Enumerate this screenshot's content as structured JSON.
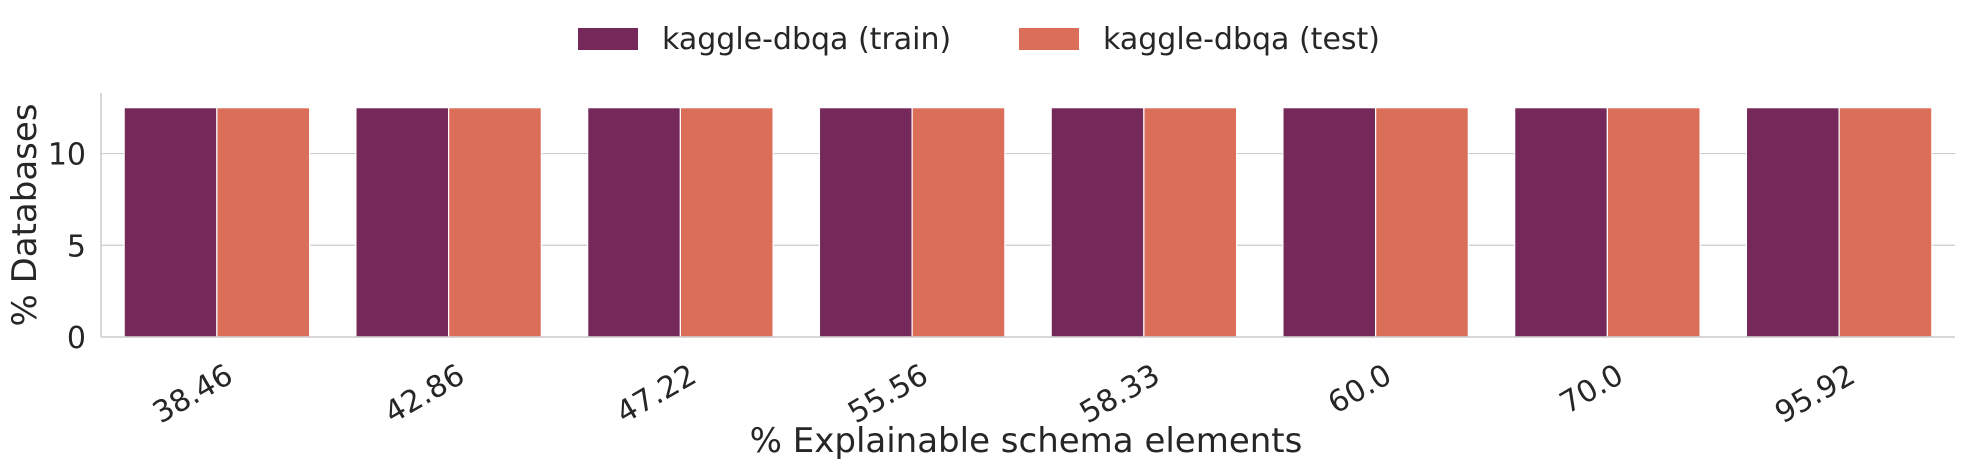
{
  "chart_data": {
    "type": "bar",
    "categories": [
      "38.46",
      "42.86",
      "47.22",
      "55.56",
      "58.33",
      "60.0",
      "70.0",
      "95.92"
    ],
    "series": [
      {
        "name": "kaggle-dbqa (train)",
        "color": "#75295a",
        "values": [
          12.5,
          12.5,
          12.5,
          12.5,
          12.5,
          12.5,
          12.5,
          12.5
        ]
      },
      {
        "name": "kaggle-dbqa (test)",
        "color": "#db6e59",
        "values": [
          12.5,
          12.5,
          12.5,
          12.5,
          12.5,
          12.5,
          12.5,
          12.5
        ]
      }
    ],
    "xlabel": "% Explainable schema elements",
    "ylabel": "% Databases",
    "ylim": [
      0,
      13.3
    ],
    "yticks": [
      0,
      5,
      10
    ],
    "grid": "horizontal",
    "legend": "top-center"
  }
}
